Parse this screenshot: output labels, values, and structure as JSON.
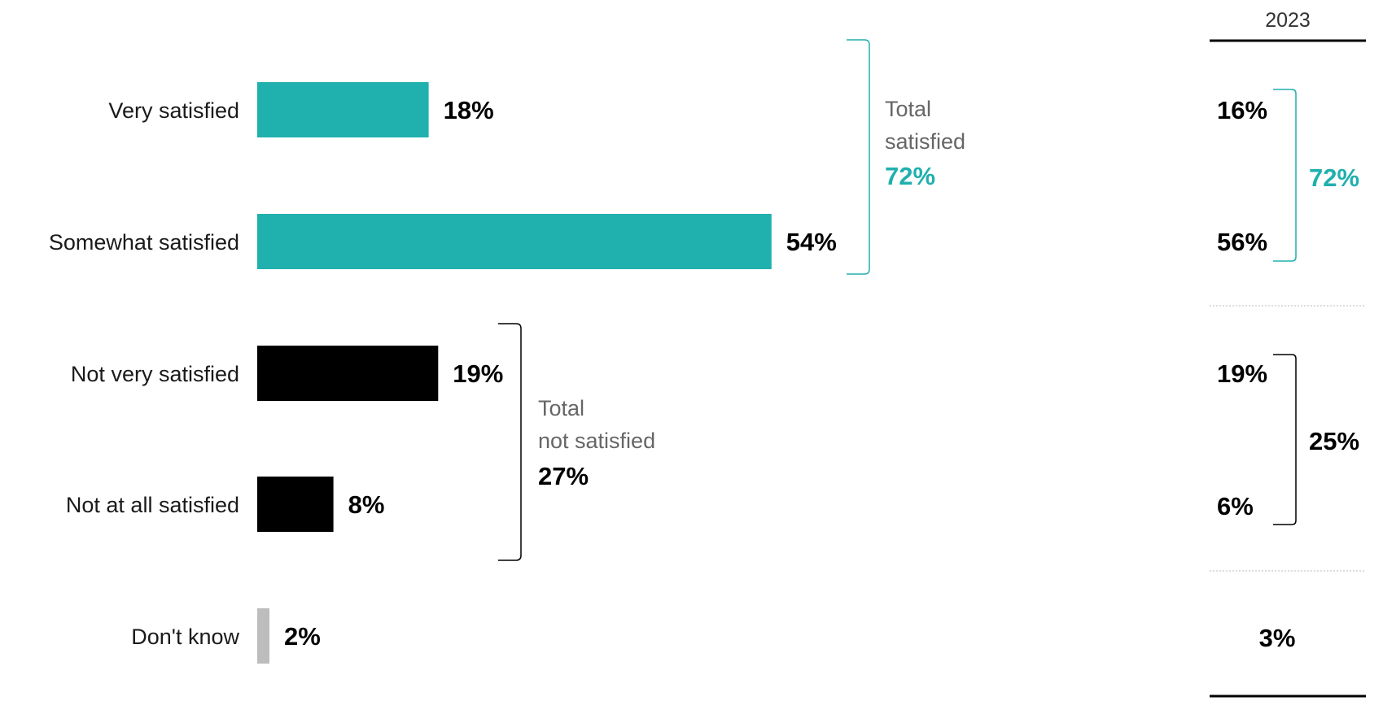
{
  "chart_data": {
    "type": "bar",
    "orientation": "horizontal",
    "categories": [
      "Very satisfied",
      "Somewhat satisfied",
      "Not very satisfied",
      "Not at all satisfied",
      "Don't know"
    ],
    "values": [
      18,
      54,
      19,
      8,
      2
    ],
    "value_labels": [
      "18%",
      "54%",
      "19%",
      "8%",
      "2%"
    ],
    "bar_colors": [
      "#20B0AE",
      "#20B0AE",
      "#000000",
      "#000000",
      "#BDBDBD"
    ],
    "groups": [
      {
        "lines": [
          "Total",
          "satisfied"
        ],
        "total": "72%",
        "total_color": "#20B0AE",
        "bracket_color": "#20B0AE",
        "members": [
          0,
          1
        ]
      },
      {
        "lines": [
          "Total",
          "not satisfied"
        ],
        "total": "27%",
        "total_color": "#000000",
        "bracket_color": "#000000",
        "members": [
          2,
          3
        ]
      }
    ],
    "comparison": {
      "header": "2023",
      "values": [
        "16%",
        "56%",
        "19%",
        "6%",
        "3%"
      ],
      "group_totals": [
        {
          "label": "72%",
          "color": "#20B0AE"
        },
        {
          "label": "25%",
          "color": "#000000"
        }
      ]
    },
    "xlim": [
      0,
      54
    ]
  }
}
